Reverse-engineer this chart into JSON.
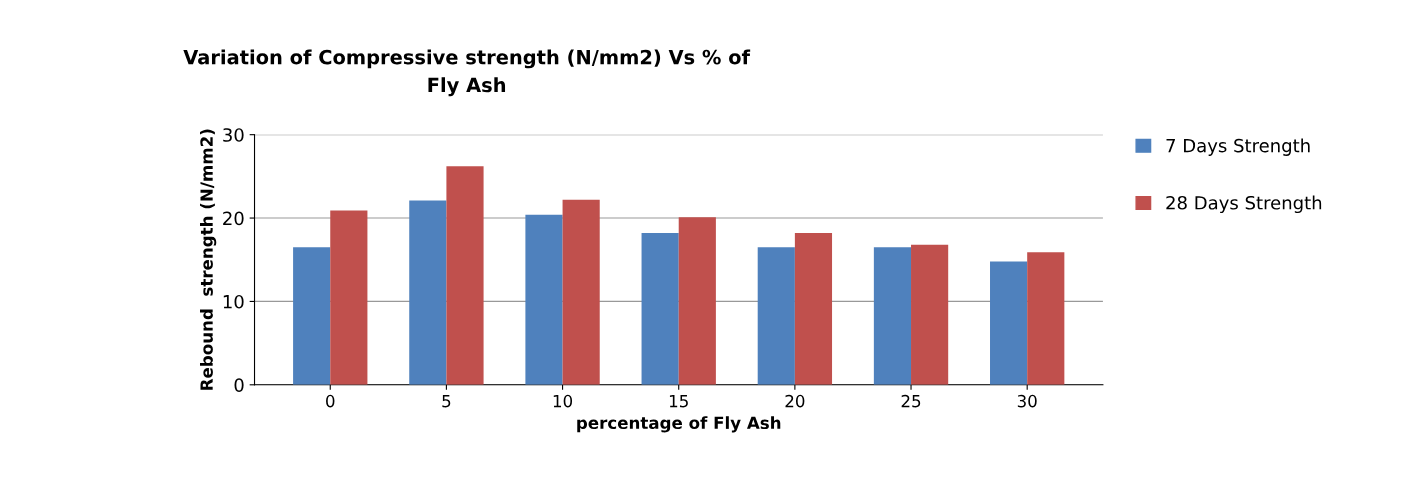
{
  "chart_data": {
    "type": "bar",
    "title": "Variation of Compressive strength (N/mm2) Vs % of\nFly Ash",
    "xlabel": "percentage of Fly Ash",
    "ylabel": "Rebound  strength (N/mm2)",
    "categories": [
      "0",
      "5",
      "10",
      "15",
      "20",
      "25",
      "30"
    ],
    "series": [
      {
        "name": "7 Days Strength",
        "color": "#4f81bd",
        "values": [
          16.5,
          22.1,
          20.4,
          18.2,
          16.5,
          16.5,
          14.8
        ]
      },
      {
        "name": "28 Days Strength",
        "color": "#c0504d",
        "values": [
          20.9,
          26.2,
          22.2,
          20.1,
          18.2,
          16.8,
          15.9
        ]
      }
    ],
    "ylim": [
      0,
      30
    ],
    "yticks": [
      0,
      10,
      20,
      30
    ],
    "grid": "y",
    "legend": "top right"
  }
}
